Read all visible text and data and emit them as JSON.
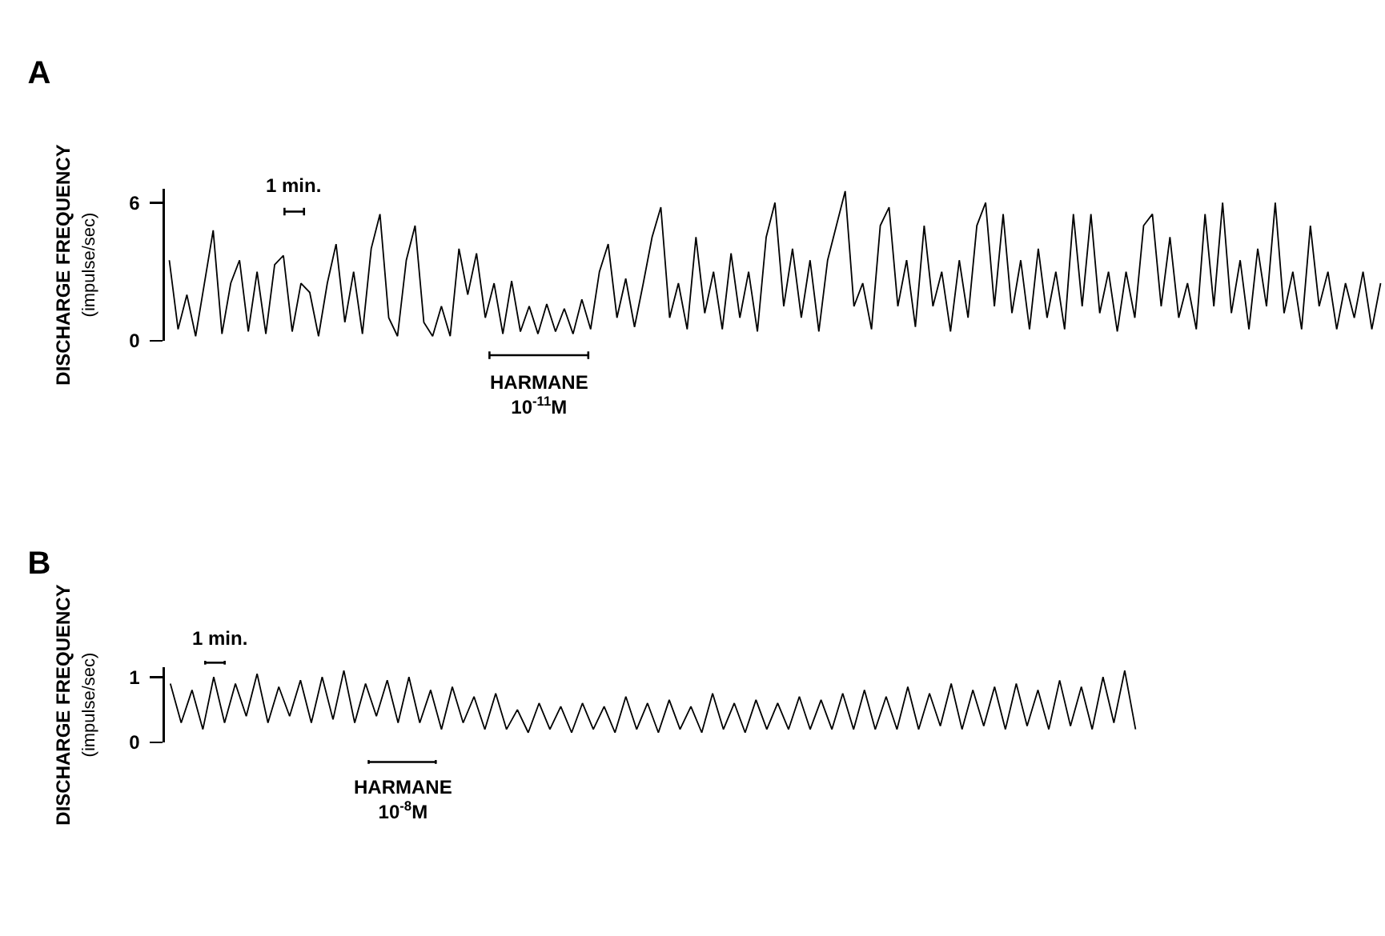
{
  "chart_data": [
    {
      "type": "line",
      "title": "A",
      "ylabel": "DISCHARGE FREQUENCY\n(impulse/sec)",
      "tick_labels": "y",
      "categories": [
        null,
        null,
        null,
        null,
        null,
        null,
        null,
        null,
        null,
        null,
        null,
        null,
        null,
        null,
        null,
        null,
        null,
        null,
        null,
        null,
        null,
        null,
        null,
        null,
        null,
        null,
        null,
        null,
        null,
        null,
        null,
        null,
        null,
        null,
        null,
        null,
        null,
        null,
        null,
        null,
        null,
        null,
        null,
        null,
        null,
        null,
        null,
        null,
        null,
        null,
        null,
        null,
        null,
        null,
        null,
        null,
        null,
        null,
        null,
        null,
        null,
        null,
        null,
        null,
        null,
        null,
        null,
        null,
        null,
        null,
        null,
        null,
        null,
        null,
        null,
        null,
        null,
        null,
        null,
        null,
        null,
        null,
        null,
        null,
        null,
        null,
        null,
        null,
        null,
        null,
        null,
        null,
        null,
        null,
        null,
        null,
        null,
        null,
        null,
        null,
        null,
        null,
        null,
        null,
        null,
        null,
        null,
        null,
        null,
        null,
        null,
        null,
        null,
        null,
        null,
        null,
        null,
        null,
        null,
        null,
        null,
        null,
        null,
        null,
        null,
        null,
        null,
        null,
        null,
        null,
        null,
        null,
        null,
        null,
        null,
        null,
        null,
        null,
        null
      ],
      "series": [
        {
          "color": "#000000",
          "values": [
            3.5,
            0.5,
            2.0,
            0.2,
            2.5,
            4.8,
            0.3,
            2.5,
            3.5,
            0.4,
            3.0,
            0.3,
            3.3,
            3.7,
            0.4,
            2.5,
            2.1,
            0.2,
            2.5,
            4.2,
            0.8,
            3.0,
            0.3,
            4.0,
            5.5,
            1.0,
            0.2,
            3.5,
            5.0,
            0.8,
            0.2,
            1.5,
            0.2,
            4.0,
            2.0,
            3.8,
            1.0,
            2.5,
            0.3,
            2.6,
            0.4,
            1.5,
            0.3,
            1.6,
            0.4,
            1.4,
            0.3,
            1.8,
            0.5,
            3.0,
            4.2,
            1.0,
            2.7,
            0.6,
            2.5,
            4.5,
            5.8,
            1.0,
            2.5,
            0.5,
            4.5,
            1.2,
            3.0,
            0.5,
            3.8,
            1.0,
            3.0,
            0.4,
            4.5,
            6.0,
            1.5,
            4.0,
            1.0,
            3.5,
            0.4,
            3.5,
            5.0,
            6.5,
            1.5,
            2.5,
            0.5,
            5.0,
            5.8,
            1.5,
            3.5,
            0.6,
            5.0,
            1.5,
            3.0,
            0.4,
            3.5,
            1.0,
            5.0,
            6.0,
            1.5,
            5.5,
            1.2,
            3.5,
            0.5,
            4.0,
            1.0,
            3.0,
            0.5,
            5.5,
            1.5,
            5.5,
            1.2,
            3.0,
            0.4,
            3.0,
            1.0,
            5.0,
            5.5,
            1.5,
            4.5,
            1.0,
            2.5,
            0.5,
            5.5,
            1.5,
            6.0,
            1.2,
            3.5,
            0.5,
            4.0,
            1.5,
            6.0,
            1.2,
            3.0,
            0.5,
            5.0,
            1.5,
            3.0,
            0.5,
            2.5,
            1.0,
            3.0,
            0.5,
            2.5
          ]
        }
      ],
      "ylim": [
        0,
        6.6
      ],
      "yticks": [
        0,
        6
      ],
      "annotations": [
        "1 min.",
        "HARMANE\n10$^{-11}$M"
      ]
    },
    {
      "type": "line",
      "title": "B",
      "ylabel": "DISCHARGE FREQUENCY\n(impulse/sec)",
      "tick_labels": "y",
      "categories": [
        null,
        null,
        null,
        null,
        null,
        null,
        null,
        null,
        null,
        null,
        null,
        null,
        null,
        null,
        null,
        null,
        null,
        null,
        null,
        null,
        null,
        null,
        null,
        null,
        null,
        null,
        null,
        null,
        null,
        null,
        null,
        null,
        null,
        null,
        null,
        null,
        null,
        null,
        null,
        null,
        null,
        null,
        null,
        null,
        null,
        null,
        null,
        null,
        null,
        null,
        null,
        null,
        null,
        null,
        null,
        null,
        null,
        null,
        null,
        null,
        null,
        null,
        null,
        null,
        null,
        null,
        null,
        null,
        null,
        null,
        null,
        null,
        null,
        null,
        null,
        null,
        null,
        null,
        null,
        null,
        null,
        null,
        null,
        null,
        null,
        null,
        null,
        null,
        null,
        null
      ],
      "series": [
        {
          "color": "#000000",
          "values": [
            0.9,
            0.3,
            0.8,
            0.2,
            1.0,
            0.3,
            0.9,
            0.4,
            1.05,
            0.3,
            0.85,
            0.4,
            0.95,
            0.3,
            1.0,
            0.35,
            1.1,
            0.3,
            0.9,
            0.4,
            0.95,
            0.3,
            1.0,
            0.3,
            0.8,
            0.2,
            0.85,
            0.3,
            0.7,
            0.2,
            0.75,
            0.2,
            0.5,
            0.15,
            0.6,
            0.2,
            0.55,
            0.15,
            0.6,
            0.2,
            0.55,
            0.15,
            0.7,
            0.2,
            0.6,
            0.15,
            0.65,
            0.2,
            0.55,
            0.15,
            0.75,
            0.2,
            0.6,
            0.15,
            0.65,
            0.2,
            0.6,
            0.2,
            0.7,
            0.2,
            0.65,
            0.2,
            0.75,
            0.2,
            0.8,
            0.2,
            0.7,
            0.2,
            0.85,
            0.2,
            0.75,
            0.25,
            0.9,
            0.2,
            0.8,
            0.25,
            0.85,
            0.2,
            0.9,
            0.25,
            0.8,
            0.2,
            0.95,
            0.25,
            0.85,
            0.2,
            1.0,
            0.3,
            1.1,
            0.2
          ]
        }
      ],
      "ylim": [
        0,
        1.15
      ],
      "yticks": [
        0,
        1
      ],
      "annotations": [
        "1 min.",
        "HARMANE\n10$^{-8}$M"
      ]
    }
  ]
}
